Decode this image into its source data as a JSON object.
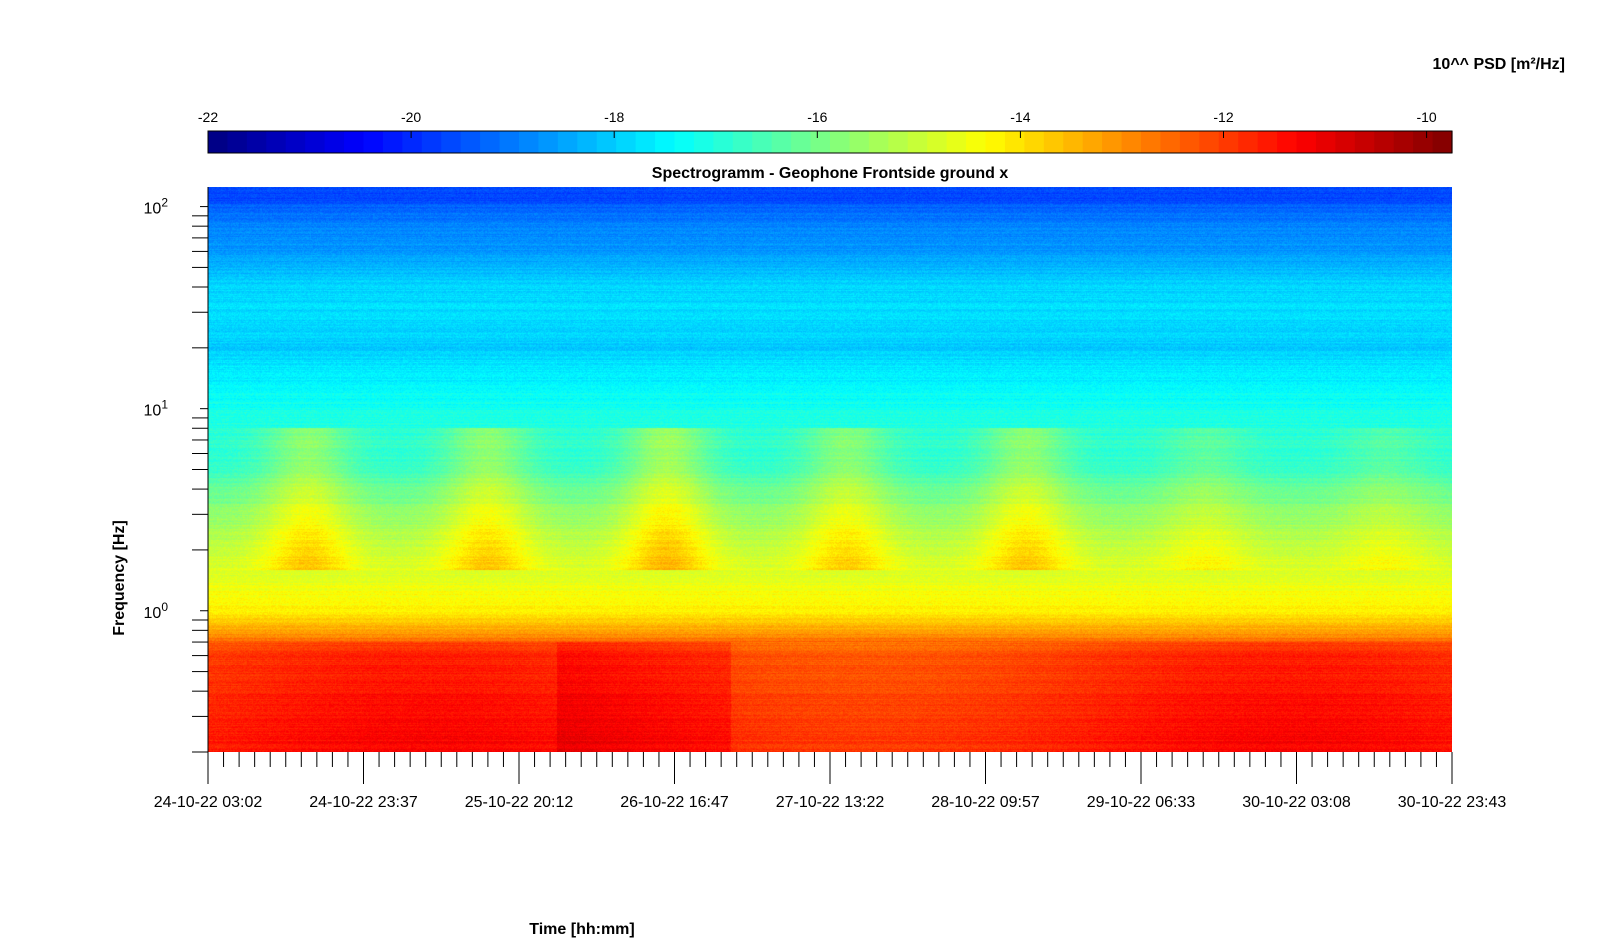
{
  "chart_data": {
    "type": "heatmap",
    "title": "Spectrogramm - Geophone Frontside ground x",
    "xlabel": "Time [hh:mm]",
    "ylabel": "Frequency [Hz]",
    "x_tick_labels": [
      "24-10-22 03:02",
      "24-10-22 23:37",
      "25-10-22 20:12",
      "26-10-22 16:47",
      "27-10-22 13:22",
      "28-10-22 09:57",
      "29-10-22 06:33",
      "30-10-22 03:08",
      "30-10-22 23:43"
    ],
    "y_scale": "log",
    "y_ticks": [
      {
        "base": "10",
        "exp": "2",
        "value": 100
      },
      {
        "base": "10",
        "exp": "1",
        "value": 10
      },
      {
        "base": "10",
        "exp": "0",
        "value": 1
      }
    ],
    "ylim": [
      0.2,
      125
    ],
    "colorbar": {
      "title": "10^^ PSD [m²/Hz]",
      "ticks": [
        "-22",
        "-20",
        "-18",
        "-16",
        "-14",
        "-12",
        "-10"
      ],
      "range": [
        -22,
        -9.75
      ],
      "colormap": "jet"
    },
    "psd_profile_log10": {
      "freq_hz": [
        125,
        110,
        100,
        80,
        60,
        50,
        40,
        30,
        20,
        15,
        10,
        7,
        5,
        4,
        3,
        2.5,
        2,
        1.5,
        1.2,
        1.0,
        0.85,
        0.75,
        0.7,
        0.6,
        0.5,
        0.4,
        0.3,
        0.2
      ],
      "level": [
        -19.6,
        -19.7,
        -19.3,
        -18.9,
        -18.6,
        -18.3,
        -17.9,
        -17.8,
        -18.0,
        -17.6,
        -17.2,
        -16.9,
        -16.8,
        -16.2,
        -15.7,
        -15.4,
        -15.0,
        -14.7,
        -14.4,
        -14.2,
        -13.6,
        -12.9,
        -12.4,
        -12.0,
        -11.9,
        -11.8,
        -11.7,
        -11.6
      ]
    },
    "activity_bursts": [
      {
        "time_label": "24-10-22",
        "level_delta": 1.2
      },
      {
        "time_label": "25-10-22",
        "level_delta": 1.2
      },
      {
        "time_label": "26-10-22",
        "level_delta": 1.4
      },
      {
        "time_label": "27-10-22",
        "level_delta": 1.1
      },
      {
        "time_label": "28-10-22",
        "level_delta": 1.2
      },
      {
        "time_label": "29-10-22",
        "level_delta": 0.6
      },
      {
        "time_label": "30-10-22",
        "level_delta": 0.5
      }
    ]
  }
}
